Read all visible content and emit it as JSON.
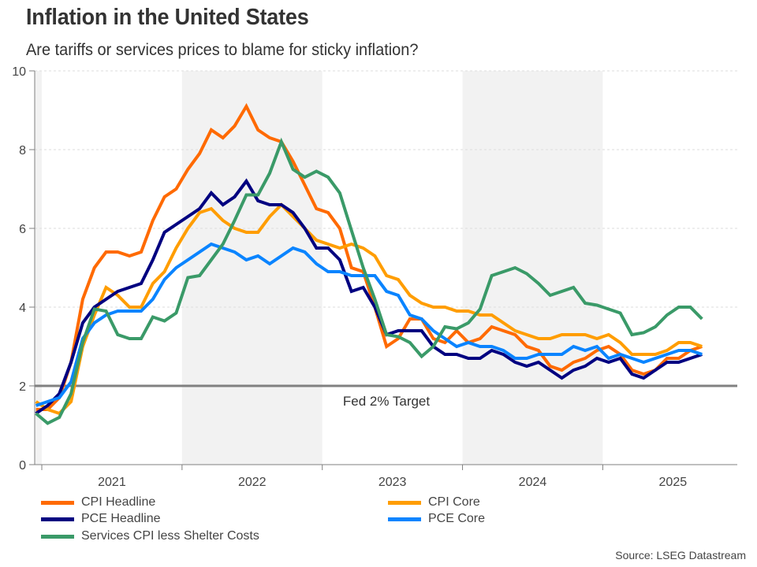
{
  "header": {
    "title": "Inflation in the United States",
    "subtitle": "Are tariffs or services prices to blame for sticky inflation?"
  },
  "source": "Source: LSEG Datastream",
  "annotation": "Fed 2% Target",
  "chart_data": {
    "type": "line",
    "title": "Inflation in the United States",
    "subtitle": "Are tariffs or services prices to blame for sticky inflation?",
    "xlabel": "",
    "ylabel": "",
    "ylim": [
      0,
      10
    ],
    "yticks": [
      "0",
      "2",
      "4",
      "6",
      "8",
      "10"
    ],
    "xticks": [
      "2021",
      "2022",
      "2023",
      "2024",
      "2025"
    ],
    "x_start": "2020-12",
    "x_end": "2025-09",
    "x": [
      "2020-12",
      "2021-01",
      "2021-02",
      "2021-03",
      "2021-04",
      "2021-05",
      "2021-06",
      "2021-07",
      "2021-08",
      "2021-09",
      "2021-10",
      "2021-11",
      "2021-12",
      "2022-01",
      "2022-02",
      "2022-03",
      "2022-04",
      "2022-05",
      "2022-06",
      "2022-07",
      "2022-08",
      "2022-09",
      "2022-10",
      "2022-11",
      "2022-12",
      "2023-01",
      "2023-02",
      "2023-03",
      "2023-04",
      "2023-05",
      "2023-06",
      "2023-07",
      "2023-08",
      "2023-09",
      "2023-10",
      "2023-11",
      "2023-12",
      "2024-01",
      "2024-02",
      "2024-03",
      "2024-04",
      "2024-05",
      "2024-06",
      "2024-07",
      "2024-08",
      "2024-09",
      "2024-10",
      "2024-11",
      "2024-12",
      "2025-01",
      "2025-02",
      "2025-03",
      "2025-04",
      "2025-05",
      "2025-06",
      "2025-07",
      "2025-08",
      "2025-09"
    ],
    "grid": true,
    "shaded_years": [
      "2020",
      "2022",
      "2024"
    ],
    "reference_line": {
      "value": 2,
      "label": "Fed 2% Target"
    },
    "legend_position": "bottom",
    "series": [
      {
        "name": "CPI Headline",
        "color": "#ff6a00",
        "values": [
          1.4,
          1.4,
          1.7,
          2.6,
          4.2,
          5.0,
          5.4,
          5.4,
          5.3,
          5.4,
          6.2,
          6.8,
          7.0,
          7.5,
          7.9,
          8.5,
          8.3,
          8.6,
          9.1,
          8.5,
          8.3,
          8.2,
          7.7,
          7.1,
          6.5,
          6.4,
          6.0,
          5.0,
          4.9,
          4.0,
          3.0,
          3.2,
          3.7,
          3.7,
          3.2,
          3.1,
          3.4,
          3.1,
          3.2,
          3.5,
          3.4,
          3.3,
          3.0,
          2.9,
          2.5,
          2.4,
          2.6,
          2.7,
          2.9,
          3.0,
          2.8,
          2.4,
          2.3,
          2.4,
          2.7,
          2.7,
          2.9,
          3.0
        ]
      },
      {
        "name": "CPI Core",
        "color": "#ff9d00",
        "values": [
          1.6,
          1.4,
          1.3,
          1.6,
          3.0,
          3.8,
          4.5,
          4.3,
          4.0,
          4.0,
          4.6,
          4.9,
          5.5,
          6.0,
          6.4,
          6.5,
          6.2,
          6.0,
          5.9,
          5.9,
          6.3,
          6.6,
          6.3,
          6.0,
          5.7,
          5.6,
          5.5,
          5.6,
          5.5,
          5.3,
          4.8,
          4.7,
          4.3,
          4.1,
          4.0,
          4.0,
          3.9,
          3.9,
          3.8,
          3.8,
          3.6,
          3.4,
          3.3,
          3.2,
          3.2,
          3.3,
          3.3,
          3.3,
          3.2,
          3.3,
          3.1,
          2.8,
          2.8,
          2.8,
          2.9,
          3.1,
          3.1,
          3.0
        ]
      },
      {
        "name": "PCE Headline",
        "color": "#000080",
        "values": [
          1.3,
          1.5,
          1.8,
          2.6,
          3.6,
          4.0,
          4.2,
          4.4,
          4.5,
          4.6,
          5.2,
          5.9,
          6.1,
          6.3,
          6.5,
          6.9,
          6.6,
          6.8,
          7.2,
          6.7,
          6.6,
          6.6,
          6.4,
          6.0,
          5.5,
          5.5,
          5.2,
          4.4,
          4.5,
          4.0,
          3.3,
          3.4,
          3.4,
          3.4,
          3.0,
          2.8,
          2.8,
          2.7,
          2.7,
          2.9,
          2.8,
          2.6,
          2.5,
          2.6,
          2.4,
          2.2,
          2.4,
          2.5,
          2.7,
          2.6,
          2.7,
          2.3,
          2.2,
          2.4,
          2.6,
          2.6,
          2.7,
          2.8
        ]
      },
      {
        "name": "PCE Core",
        "color": "#0a84ff",
        "values": [
          1.5,
          1.6,
          1.7,
          2.1,
          3.2,
          3.6,
          3.8,
          3.9,
          3.9,
          3.9,
          4.2,
          4.7,
          5.0,
          5.2,
          5.4,
          5.6,
          5.5,
          5.4,
          5.2,
          5.3,
          5.1,
          5.3,
          5.5,
          5.4,
          5.1,
          4.9,
          4.9,
          4.8,
          4.8,
          4.8,
          4.4,
          4.3,
          3.8,
          3.7,
          3.4,
          3.2,
          3.0,
          3.1,
          3.0,
          3.0,
          2.9,
          2.7,
          2.7,
          2.8,
          2.8,
          2.8,
          3.0,
          2.9,
          3.0,
          2.7,
          2.8,
          2.7,
          2.6,
          2.7,
          2.8,
          2.9,
          2.9,
          2.8
        ]
      },
      {
        "name": "Services CPI less Shelter Costs",
        "color": "#3a9a68",
        "values": [
          1.3,
          1.05,
          1.2,
          1.8,
          3.1,
          3.95,
          3.9,
          3.3,
          3.2,
          3.2,
          3.75,
          3.65,
          3.85,
          4.75,
          4.8,
          5.2,
          5.6,
          6.2,
          6.85,
          6.85,
          7.4,
          8.2,
          7.5,
          7.3,
          7.45,
          7.3,
          6.9,
          5.95,
          5.0,
          4.2,
          3.3,
          3.25,
          3.1,
          2.75,
          3.0,
          3.5,
          3.45,
          3.6,
          3.95,
          4.8,
          4.9,
          5.0,
          4.85,
          4.6,
          4.3,
          4.4,
          4.5,
          4.1,
          4.05,
          3.95,
          3.85,
          3.3,
          3.35,
          3.5,
          3.8,
          4.0,
          4.0,
          3.7
        ]
      }
    ]
  }
}
